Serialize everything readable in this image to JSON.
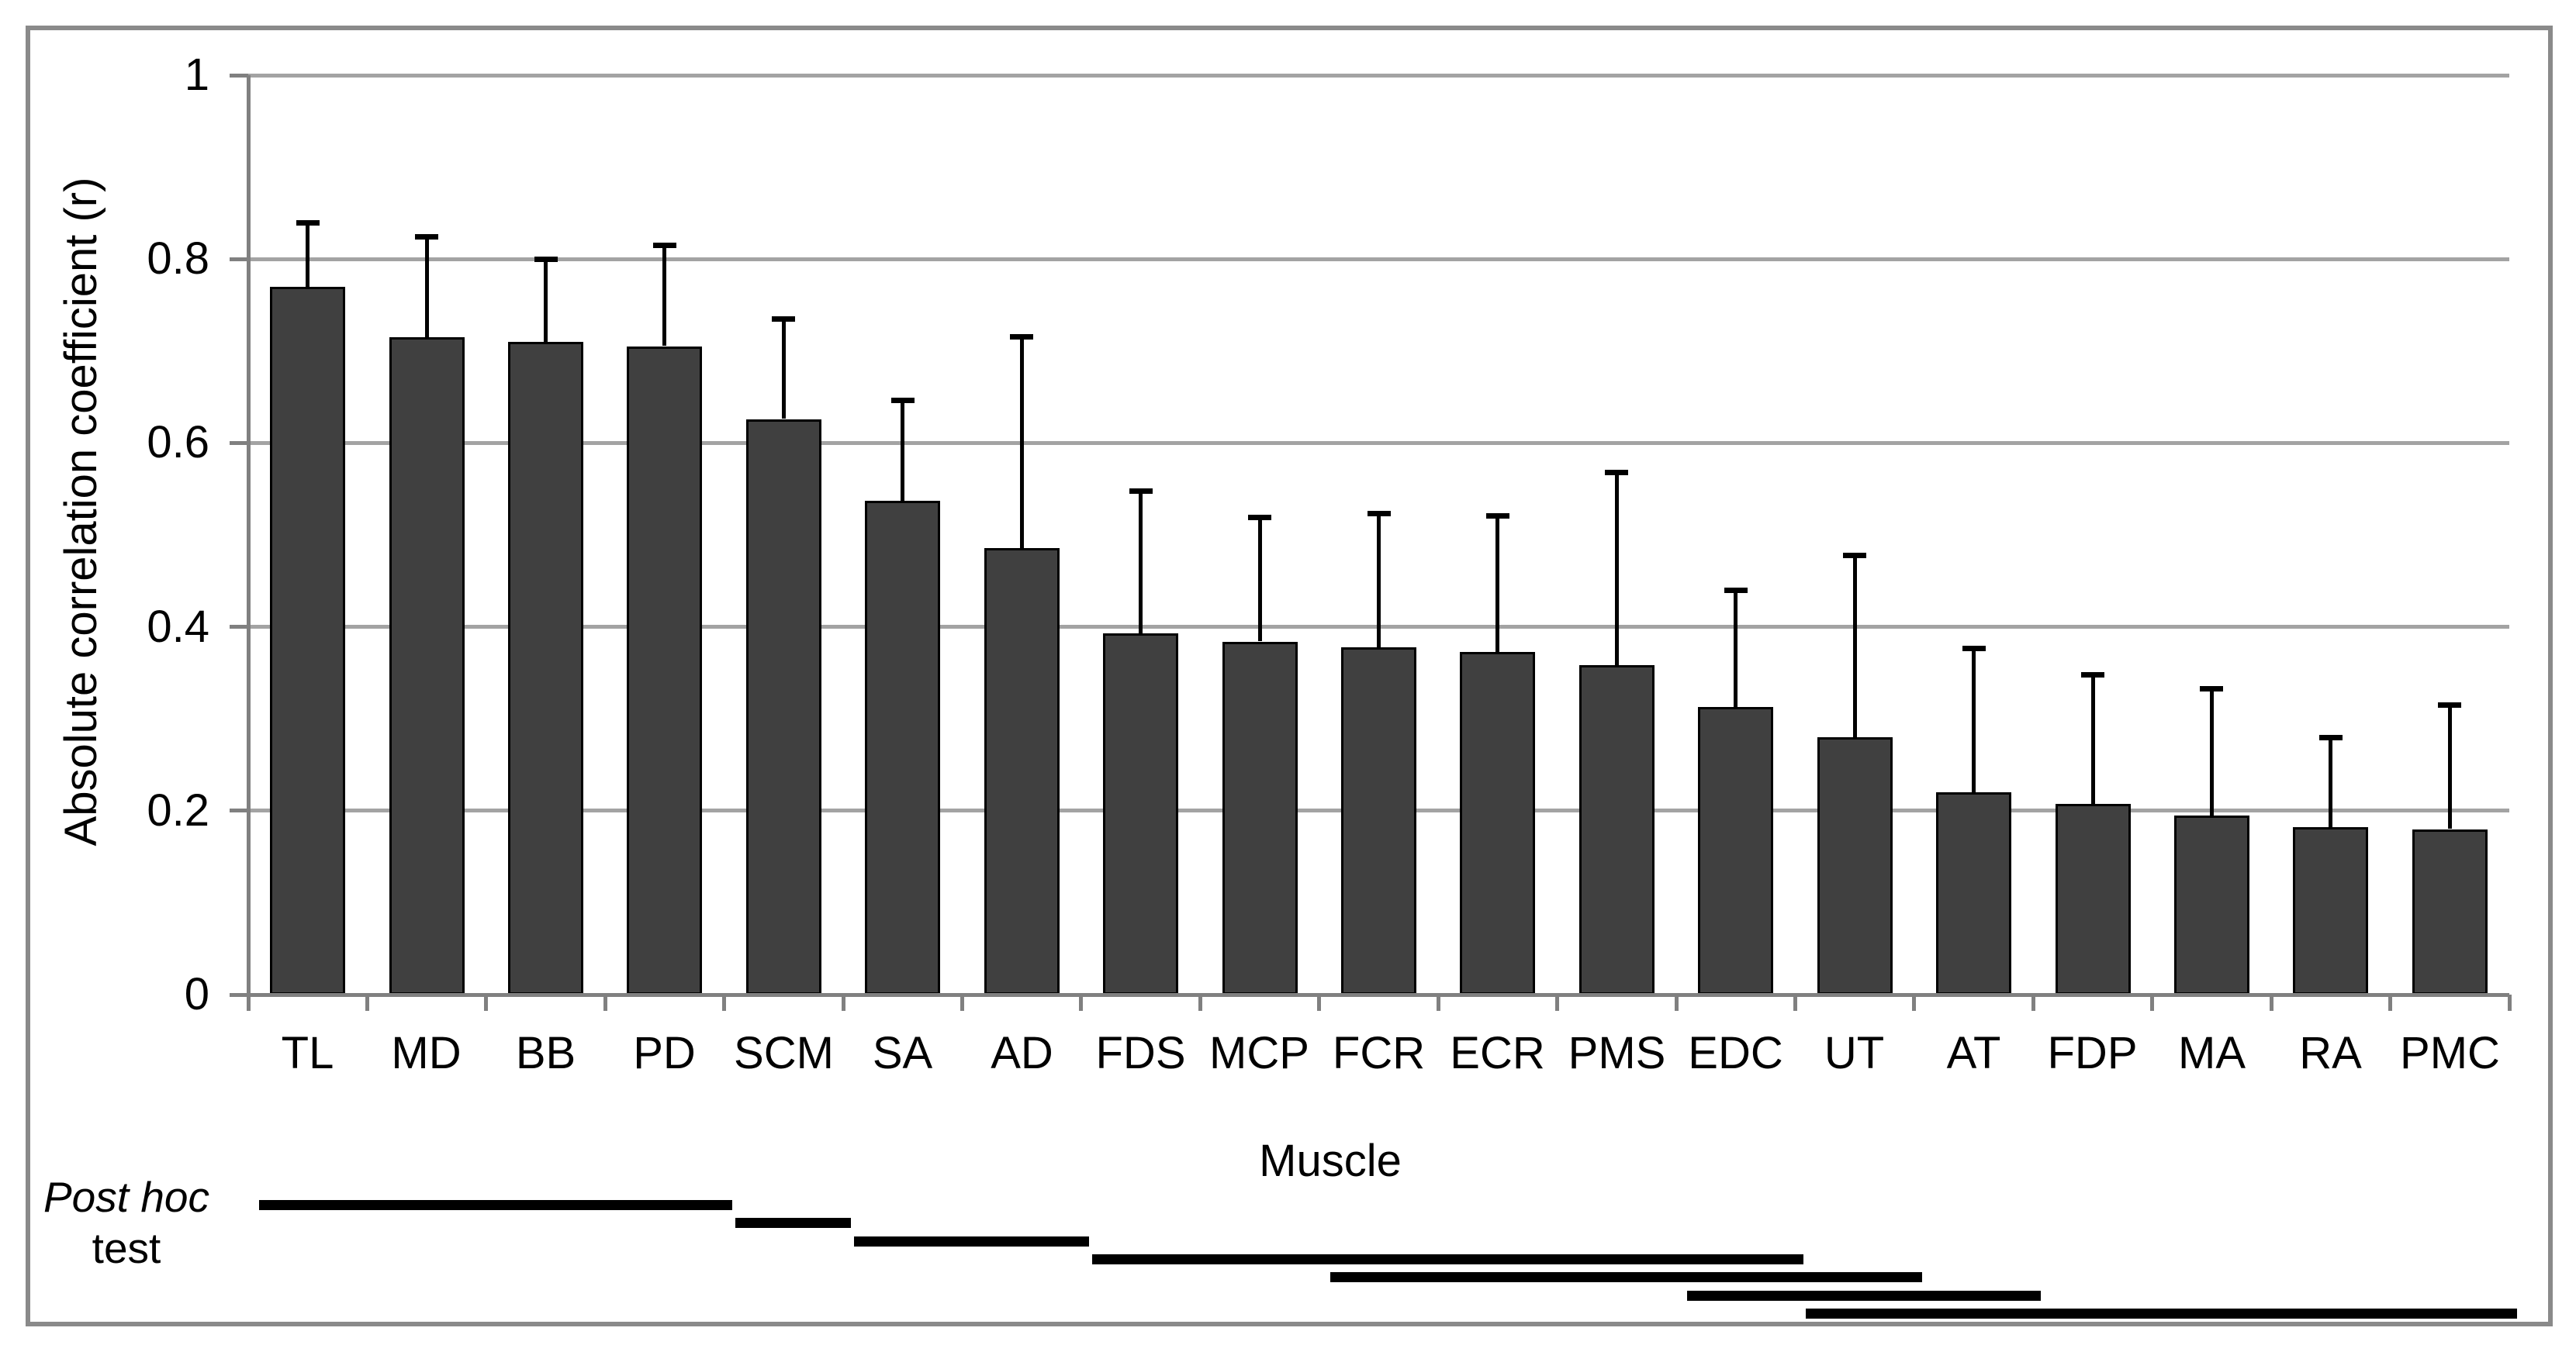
{
  "chart_data": {
    "type": "bar",
    "title": "",
    "categories": [
      "TL",
      "MD",
      "BB",
      "PD",
      "SCM",
      "SA",
      "AD",
      "FDS",
      "MCP",
      "FCR",
      "ECR",
      "PMS",
      "EDC",
      "UT",
      "AT",
      "FDP",
      "MA",
      "RA",
      "PMC"
    ],
    "values": [
      0.77,
      0.715,
      0.71,
      0.705,
      0.626,
      0.537,
      0.486,
      0.393,
      0.384,
      0.378,
      0.373,
      0.358,
      0.313,
      0.28,
      0.22,
      0.207,
      0.195,
      0.182,
      0.18
    ],
    "errors_upper": [
      0.07,
      0.11,
      0.09,
      0.11,
      0.109,
      0.11,
      0.23,
      0.155,
      0.135,
      0.146,
      0.148,
      0.21,
      0.127,
      0.198,
      0.157,
      0.141,
      0.138,
      0.098,
      0.135
    ],
    "xlabel": "Muscle",
    "ylabel": "Absolute correlation coefficient (r)",
    "ylim": [
      0,
      1
    ],
    "y_ticks": [
      "1",
      "0.8",
      "0.6",
      "0.4",
      "0.2",
      "0"
    ],
    "y_tick_values": [
      1,
      0.8,
      0.6,
      0.4,
      0.2,
      0
    ],
    "grid": "horizontal gridlines at each y tick",
    "legend": "none",
    "bar_fill_color": "#404040",
    "bar_border_color": "#000000",
    "gridline_color": "#a3a3a3",
    "axis_color": "#808080",
    "frame_color": "#8a8a8a",
    "error_bar_color": "#000000"
  },
  "post_hoc": {
    "label_line1": "Post hoc",
    "label_line2": "test",
    "lines": [
      {
        "from": "TL",
        "to": "PD"
      },
      {
        "from": "SCM",
        "to": "SCM"
      },
      {
        "from": "SA",
        "to": "AD"
      },
      {
        "from": "FDS",
        "to": "EDC"
      },
      {
        "from": "FCR",
        "to": "UT"
      },
      {
        "from": "EDC",
        "to": "AT"
      },
      {
        "from": "UT",
        "to": "PMC"
      }
    ]
  }
}
